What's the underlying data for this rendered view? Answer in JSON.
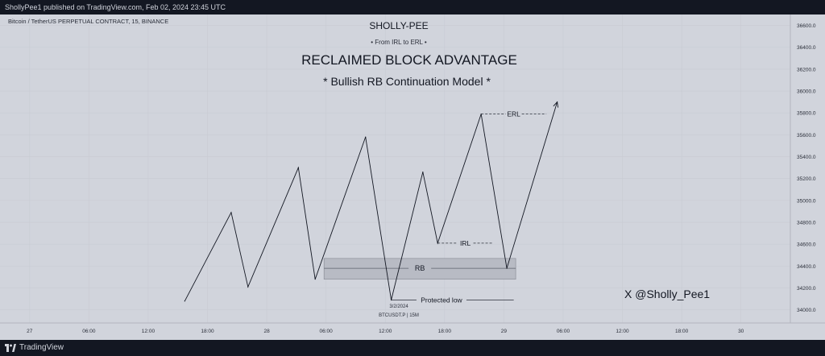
{
  "header": {
    "published": "ShollyPee1 published on TradingView.com, Feb 02, 2024 23:45 UTC"
  },
  "symbol_info": "Bitcoin / TetherUS PERPETUAL CONTRACT, 15, BINANCE",
  "footer": {
    "brand": "TradingView"
  },
  "chart_data": {
    "type": "line",
    "title": "RECLAIMED BLOCK ADVANTAGE",
    "subtitle": "* Bullish RB Continuation Model *",
    "author": "SHOLLY-PEE",
    "tagline": "• From IRL to ERL •",
    "watermark": "X @Sholly_Pee1",
    "date_stamp": "3/2/2024",
    "symbol_stamp": "BTCUSDT.P | 15M",
    "y_ticks": [
      "36600.0",
      "36400.0",
      "36200.0",
      "36000.0",
      "35800.0",
      "35600.0",
      "35400.0",
      "35200.0",
      "35000.0",
      "34800.0",
      "34600.0",
      "34400.0",
      "34200.0",
      "34000.0"
    ],
    "ylim": [
      33880,
      36700
    ],
    "x_ticks": [
      {
        "t": 0,
        "label": "27"
      },
      {
        "t": 6,
        "label": "06:00"
      },
      {
        "t": 12,
        "label": "12:00"
      },
      {
        "t": 18,
        "label": "18:00"
      },
      {
        "t": 24,
        "label": "28"
      },
      {
        "t": 30,
        "label": "06:00"
      },
      {
        "t": 36,
        "label": "12:00"
      },
      {
        "t": 42,
        "label": "18:00"
      },
      {
        "t": 48,
        "label": "29"
      },
      {
        "t": 54,
        "label": "06:00"
      },
      {
        "t": 60,
        "label": "12:00"
      },
      {
        "t": 66,
        "label": "18:00"
      },
      {
        "t": 72,
        "label": "30"
      }
    ],
    "xlim": [
      -3,
      77
    ],
    "path": [
      {
        "t": 15.7,
        "p": 34080
      },
      {
        "t": 20.4,
        "p": 34890
      },
      {
        "t": 22.1,
        "p": 34210
      },
      {
        "t": 27.2,
        "p": 35300
      },
      {
        "t": 28.9,
        "p": 34280
      },
      {
        "t": 34.0,
        "p": 35580
      },
      {
        "t": 36.6,
        "p": 34090
      },
      {
        "t": 39.8,
        "p": 35260
      },
      {
        "t": 41.3,
        "p": 34610
      },
      {
        "t": 45.7,
        "p": 35790
      },
      {
        "t": 48.3,
        "p": 34380
      },
      {
        "t": 53.4,
        "p": 35900
      }
    ],
    "rb_zone": {
      "t0": 29.8,
      "t1": 49.2,
      "p_low": 34280,
      "p_mid": 34380,
      "p_high": 34470,
      "label": "RB"
    },
    "levels": [
      {
        "label": "ERL",
        "t0": 45.7,
        "t1": 52.3,
        "p": 35790
      },
      {
        "label": "IRL",
        "t0": 41.3,
        "t1": 46.9,
        "p": 34610
      },
      {
        "label": "Protected low",
        "t0": 36.6,
        "t1": 49.0,
        "p": 34090
      }
    ]
  }
}
